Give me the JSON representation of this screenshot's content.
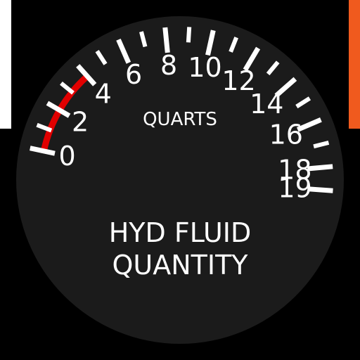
{
  "gauge": {
    "title_line1": "HYD FLUID",
    "title_line2": "QUANTITY",
    "units": "QUARTS",
    "scale_labels": [
      "0",
      "2",
      "4",
      "6",
      "8",
      "10",
      "12",
      "14",
      "16",
      "18",
      "19"
    ],
    "scale_min": 0,
    "scale_max": 19,
    "red_range": [
      0,
      4
    ],
    "colors": {
      "face": "#1b1b1b",
      "markings": "#ffffff",
      "warning": "#e10000",
      "frame_left": "#ffffff",
      "frame_right": "#f05a1e"
    }
  }
}
